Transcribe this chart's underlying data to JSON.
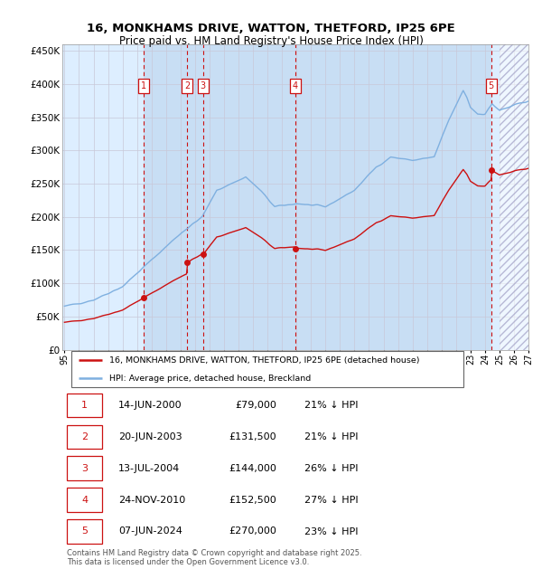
{
  "title": "16, MONKHAMS DRIVE, WATTON, THETFORD, IP25 6PE",
  "subtitle": "Price paid vs. HM Land Registry's House Price Index (HPI)",
  "ylim": [
    0,
    460000
  ],
  "yticks": [
    0,
    50000,
    100000,
    150000,
    200000,
    250000,
    300000,
    350000,
    400000,
    450000
  ],
  "ytick_labels": [
    "£0",
    "£50K",
    "£100K",
    "£150K",
    "£200K",
    "£250K",
    "£300K",
    "£350K",
    "£400K",
    "£450K"
  ],
  "background_color": "#ffffff",
  "plot_bg_color": "#ddeeff",
  "grid_color": "#c8c8d8",
  "hpi_color": "#7fb0e0",
  "price_color": "#cc1111",
  "vline_color": "#cc1111",
  "legend_house_label": "16, MONKHAMS DRIVE, WATTON, THETFORD, IP25 6PE (detached house)",
  "legend_hpi_label": "HPI: Average price, detached house, Breckland",
  "footer": "Contains HM Land Registry data © Crown copyright and database right 2025.\nThis data is licensed under the Open Government Licence v3.0.",
  "sales": [
    {
      "num": 1,
      "date_val": 2000.46,
      "price": 79000
    },
    {
      "num": 2,
      "date_val": 2003.46,
      "price": 131500
    },
    {
      "num": 3,
      "date_val": 2004.54,
      "price": 144000
    },
    {
      "num": 4,
      "date_val": 2010.9,
      "price": 152500
    },
    {
      "num": 5,
      "date_val": 2024.43,
      "price": 270000
    }
  ],
  "xmin": 1995.0,
  "xmax": 2027.0,
  "hatch_start": 2025.0,
  "xtick_years": [
    1995,
    1996,
    1997,
    1998,
    1999,
    2000,
    2001,
    2002,
    2003,
    2004,
    2005,
    2006,
    2007,
    2008,
    2009,
    2010,
    2011,
    2012,
    2013,
    2014,
    2015,
    2016,
    2017,
    2018,
    2019,
    2020,
    2021,
    2022,
    2023,
    2024,
    2025,
    2026,
    2027
  ],
  "table_rows": [
    {
      "num": 1,
      "date": "14-JUN-2000",
      "price": "£79,000",
      "pct": "21% ↓ HPI"
    },
    {
      "num": 2,
      "date": "20-JUN-2003",
      "price": "£131,500",
      "pct": "21% ↓ HPI"
    },
    {
      "num": 3,
      "date": "13-JUL-2004",
      "price": "£144,000",
      "pct": "26% ↓ HPI"
    },
    {
      "num": 4,
      "date": "24-NOV-2010",
      "price": "£152,500",
      "pct": "27% ↓ HPI"
    },
    {
      "num": 5,
      "date": "07-JUN-2024",
      "price": "£270,000",
      "pct": "23% ↓ HPI"
    }
  ]
}
